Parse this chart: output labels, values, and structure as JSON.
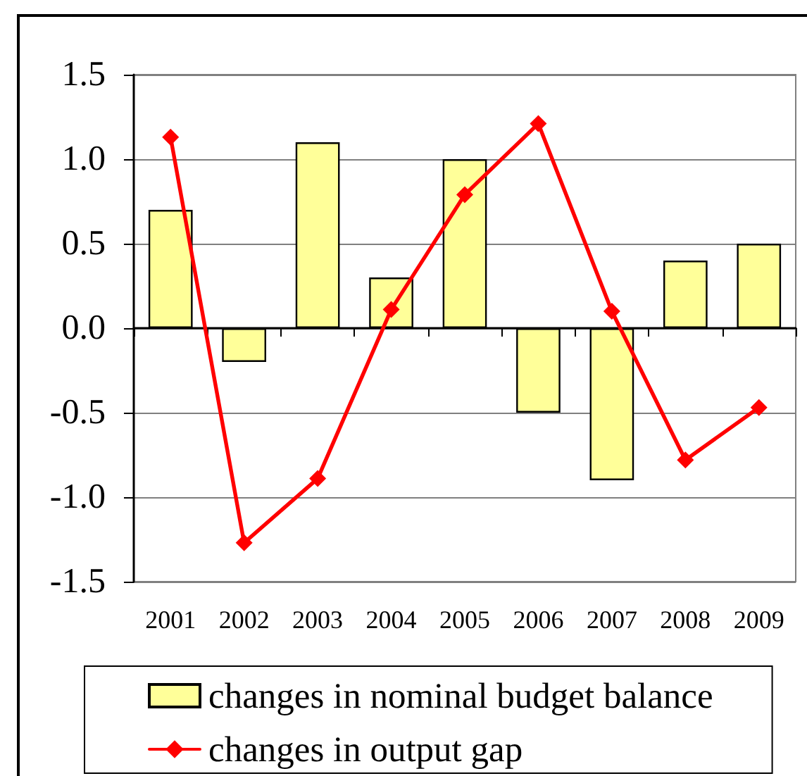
{
  "chart_data": {
    "type": "bar",
    "categories": [
      "2001",
      "2002",
      "2003",
      "2004",
      "2005",
      "2006",
      "2007",
      "2008",
      "2009"
    ],
    "series": [
      {
        "name": "changes in nominal budget balance",
        "color": "#ffff99",
        "values": [
          0.7,
          -0.2,
          1.1,
          0.3,
          1.0,
          -0.5,
          -0.9,
          0.4,
          0.5
        ]
      },
      {
        "name": "changes in output gap",
        "type": "line",
        "color": "#ff0000",
        "values": [
          1.13,
          -1.27,
          -0.89,
          0.11,
          0.79,
          1.21,
          0.1,
          -0.78,
          -0.47
        ]
      }
    ],
    "ylim": [
      -1.5,
      1.5
    ],
    "yticks": [
      -1.5,
      {
        "value": -1.0,
        "label": "-1.0"
      },
      -0.5,
      {
        "value": 0.0,
        "label": "0.0"
      },
      0.5,
      {
        "value": 1.0,
        "label": "1.0"
      },
      1.5
    ],
    "grid": "y",
    "legend": "bottom",
    "marker": "diamond",
    "line_style": "solid"
  }
}
